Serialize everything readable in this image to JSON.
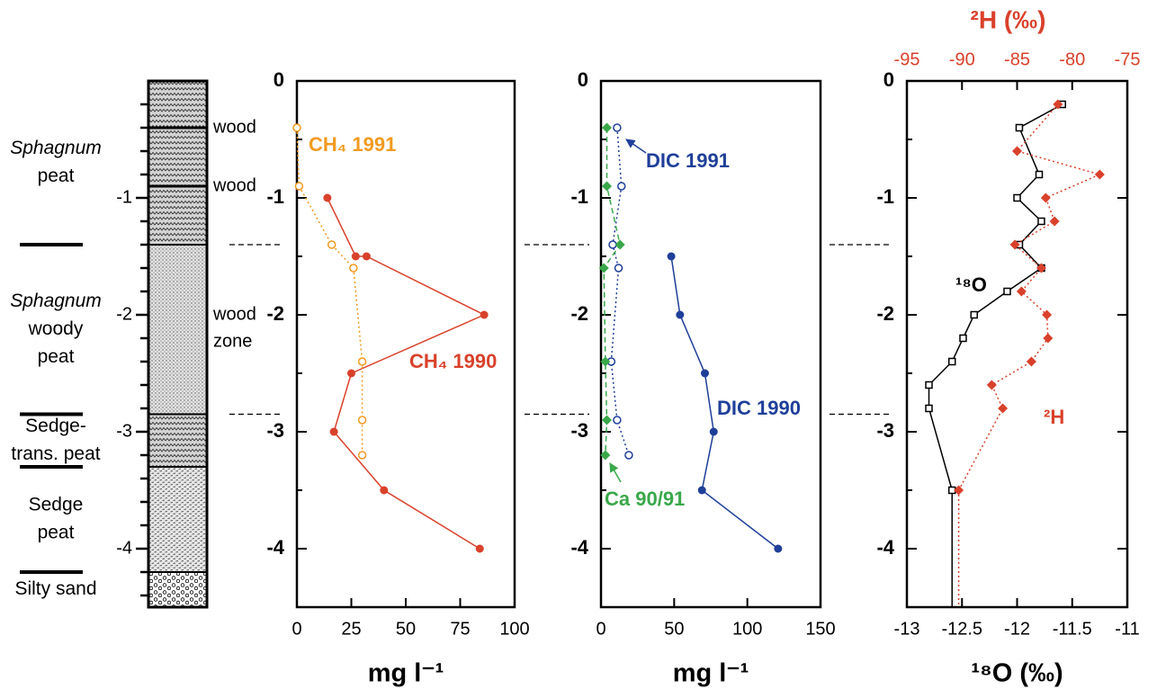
{
  "chart_data": [
    {
      "type": "lithology",
      "ylim": [
        0,
        -4.5
      ],
      "yticks": [
        -1,
        -2,
        -3,
        -4
      ],
      "yminorticks": [
        -0.2,
        -0.4,
        -0.6,
        -0.8,
        -1.2,
        -1.4,
        -1.6,
        -1.8,
        -2.2,
        -2.4,
        -2.6,
        -2.8,
        -3.2,
        -3.4,
        -3.6,
        -3.8,
        -4.2,
        -4.4
      ],
      "layers": [
        {
          "taxon": "Sphagnum",
          "label": [
            "peat"
          ],
          "top": 0,
          "bottom": -1.4,
          "pattern": "wave"
        },
        {
          "taxon": "Sphagnum",
          "label": [
            "woody",
            "peat"
          ],
          "top": -1.4,
          "bottom": -2.85,
          "pattern": "dots"
        },
        {
          "label": [
            "Sedge-",
            "trans. peat"
          ],
          "top": -2.85,
          "bottom": -3.3,
          "pattern": "wave"
        },
        {
          "label": [
            "Sedge",
            "peat"
          ],
          "top": -3.3,
          "bottom": -4.2,
          "pattern": "dash"
        },
        {
          "label": [
            "Silty sand"
          ],
          "top": -4.2,
          "bottom": -4.5,
          "pattern": "circles"
        }
      ],
      "wood_lines": [
        -0.4,
        -0.9
      ],
      "annotations": [
        {
          "text": [
            "wood"
          ],
          "y": -0.4
        },
        {
          "text": [
            "wood"
          ],
          "y": -0.9
        },
        {
          "text": [
            "wood",
            "zone"
          ],
          "y": -2
        }
      ],
      "marked_boundaries": [
        -1.4,
        -2.85
      ]
    },
    {
      "type": "profile",
      "xlim": [
        0,
        100
      ],
      "xticks": [
        0,
        25,
        50,
        75,
        100
      ],
      "ylim": [
        0,
        -4.5
      ],
      "yticks": [
        0,
        -1,
        -2,
        -3,
        -4
      ],
      "yminorticks": [
        -0.5,
        -1.5,
        -2.5,
        -3.5
      ],
      "xlabel": "mg l⁻¹",
      "series": [
        {
          "name": "CH₄ 1990",
          "color": "#d9412b",
          "line": "solid",
          "marker": "filled-circle",
          "x": [
            14,
            27,
            32,
            86,
            25,
            17,
            40,
            84
          ],
          "y": [
            -1,
            -1.5,
            -1.5,
            -2,
            -2.5,
            -3,
            -3.5,
            -4
          ]
        },
        {
          "name": "CH₄ 1991",
          "color": "#f29a1f",
          "line": "dotted",
          "marker": "open-circle",
          "x": [
            0,
            1,
            16,
            26,
            30,
            30,
            30
          ],
          "y": [
            -0.4,
            -0.9,
            -1.4,
            -1.6,
            -2.4,
            -2.9,
            -3.2
          ]
        }
      ]
    },
    {
      "type": "profile",
      "xlim": [
        0,
        150
      ],
      "xticks": [
        0,
        50,
        100,
        150
      ],
      "ylim": [
        0,
        -4.5
      ],
      "yticks": [
        0,
        -1,
        -2,
        -3,
        -4
      ],
      "yminorticks": [
        -0.5,
        -1.5,
        -2.5,
        -3.5
      ],
      "xlabel": "mg l⁻¹",
      "series": [
        {
          "name": "DIC 1990",
          "color": "#1f3f99",
          "line": "solid",
          "marker": "filled-circle",
          "x": [
            48,
            54,
            71,
            77,
            69,
            121
          ],
          "y": [
            -1.5,
            -2,
            -2.5,
            -3,
            -3.5,
            -4
          ]
        },
        {
          "name": "DIC 1991",
          "color": "#1f3f99",
          "line": "dotted",
          "marker": "open-circle",
          "x": [
            11,
            14,
            8,
            12,
            7,
            11,
            19
          ],
          "y": [
            -0.4,
            -0.9,
            -1.4,
            -1.6,
            -2.4,
            -2.9,
            -3.2
          ]
        },
        {
          "name": "Ca 90/91",
          "color": "#3aa84a",
          "line": "dashed",
          "marker": "diamond",
          "x": [
            4,
            4,
            13,
            2,
            3,
            4,
            3
          ],
          "y": [
            -0.4,
            -0.9,
            -1.4,
            -1.6,
            -2.4,
            -2.9,
            -3.2
          ]
        }
      ]
    },
    {
      "type": "profile",
      "xlim": [
        -13,
        -11
      ],
      "xticks": [
        -13,
        -12.5,
        -12,
        -11.5,
        -11
      ],
      "ylim": [
        0,
        -4.5
      ],
      "yticks": [
        0,
        -1,
        -2,
        -3,
        -4
      ],
      "yminorticks": [
        -0.5,
        -1.5,
        -2.5,
        -3.5
      ],
      "xlabel": "¹⁸O (‰)",
      "x2lim": [
        -95,
        -75
      ],
      "x2ticks": [
        -95,
        -90,
        -85,
        -80,
        -75
      ],
      "x2label": "²H (‰)",
      "x2color": "#d9412b",
      "series": [
        {
          "name": "¹⁸O",
          "color": "#000000",
          "line": "solid",
          "marker": "open-square",
          "extend_to_bottom": true,
          "x": [
            -11.59,
            -11.98,
            -11.8,
            -12.0,
            -11.78,
            -11.98,
            -11.78,
            -12.09,
            -12.39,
            -12.49,
            -12.59,
            -12.8,
            -12.8,
            -12.59
          ],
          "y": [
            -0.2,
            -0.4,
            -0.8,
            -1.0,
            -1.2,
            -1.4,
            -1.6,
            -1.8,
            -2.0,
            -2.2,
            -2.4,
            -2.6,
            -2.8,
            -3.5
          ]
        },
        {
          "name": "²H",
          "color": "#d9412b",
          "line": "dotted",
          "marker": "diamond",
          "axis": "x2",
          "extend_to_bottom": true,
          "x": [
            -81.3,
            -85.0,
            -77.5,
            -82.4,
            -81.6,
            -85.2,
            -82.8,
            -84.6,
            -82.3,
            -82.2,
            -83.7,
            -87.3,
            -86.3,
            -90.3
          ],
          "y": [
            -0.2,
            -0.6,
            -0.8,
            -1.0,
            -1.2,
            -1.4,
            -1.6,
            -1.8,
            -2.0,
            -2.2,
            -2.4,
            -2.6,
            -2.8,
            -3.5
          ]
        }
      ]
    }
  ]
}
